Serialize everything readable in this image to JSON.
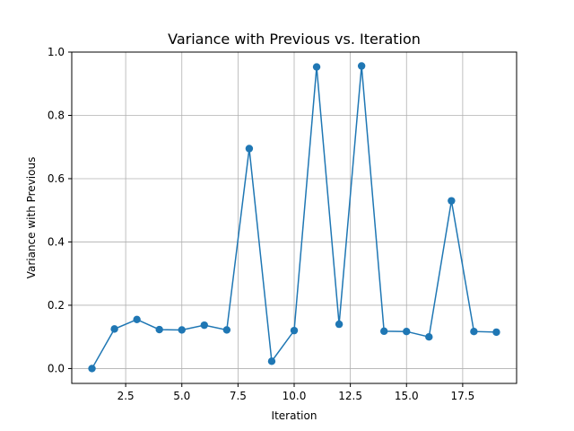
{
  "chart_data": {
    "type": "line",
    "title": "Variance with Previous vs. Iteration",
    "xlabel": "Iteration",
    "ylabel": "Variance with Previous",
    "xlim": [
      0.1,
      19.9
    ],
    "ylim": [
      -0.047,
      1.0
    ],
    "xticks": [
      2.5,
      5.0,
      7.5,
      10.0,
      12.5,
      15.0,
      17.5
    ],
    "xtick_labels": [
      "2.5",
      "5.0",
      "7.5",
      "10.0",
      "12.5",
      "15.0",
      "17.5"
    ],
    "yticks": [
      0.0,
      0.2,
      0.4,
      0.6,
      0.8,
      1.0
    ],
    "ytick_labels": [
      "0.0",
      "0.2",
      "0.4",
      "0.6",
      "0.8",
      "1.0"
    ],
    "grid": true,
    "series": [
      {
        "color": "#1f77b4",
        "marker": "circle",
        "x": [
          1,
          2,
          3,
          4,
          5,
          6,
          7,
          8,
          9,
          10,
          11,
          12,
          13,
          14,
          15,
          16,
          17,
          18,
          19
        ],
        "y": [
          0.0,
          0.125,
          0.155,
          0.123,
          0.122,
          0.137,
          0.122,
          0.695,
          0.023,
          0.12,
          0.953,
          0.14,
          0.956,
          0.118,
          0.117,
          0.1,
          0.53,
          0.117,
          0.115
        ]
      }
    ]
  }
}
